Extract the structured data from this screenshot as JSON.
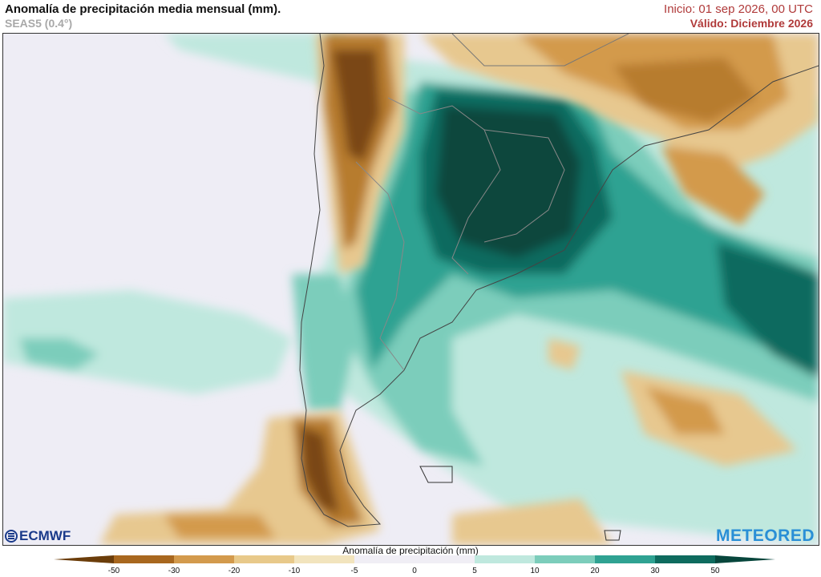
{
  "header": {
    "title": "Anomalía de precipitación media mensual (mm).",
    "subtitle": "SEAS5 (0.4°)",
    "init": "Inicio: 01 sep 2026, 00 UTC",
    "valid": "Válido: Diciembre 2026"
  },
  "logos": {
    "left": "ECMWF",
    "right": "METEORED"
  },
  "legend": {
    "title": "Anomalía de precipitación (mm)",
    "ticks": [
      "-50",
      "-30",
      "-20",
      "-10",
      "-5",
      "0",
      "5",
      "10",
      "20",
      "30",
      "50"
    ],
    "colors": [
      "#6b3d0a",
      "#a8671e",
      "#d39a4c",
      "#e8c98a",
      "#f2e4bd",
      "#f0eef5",
      "#f0eef5",
      "#bfe8de",
      "#7ccdbb",
      "#2fa292",
      "#0e6b5e",
      "#07463c"
    ]
  },
  "palette": {
    "ocean": "#eeedf5",
    "land_neutral": "#f0eef5",
    "dry_strong": "#7a4712",
    "dry_mid": "#b77b2f",
    "dry_light": "#e7c88f",
    "wet_light": "#bfe8de",
    "wet_mid": "#4fb8a4",
    "wet_strong": "#0f6f60",
    "wet_max": "#0a4a40"
  }
}
